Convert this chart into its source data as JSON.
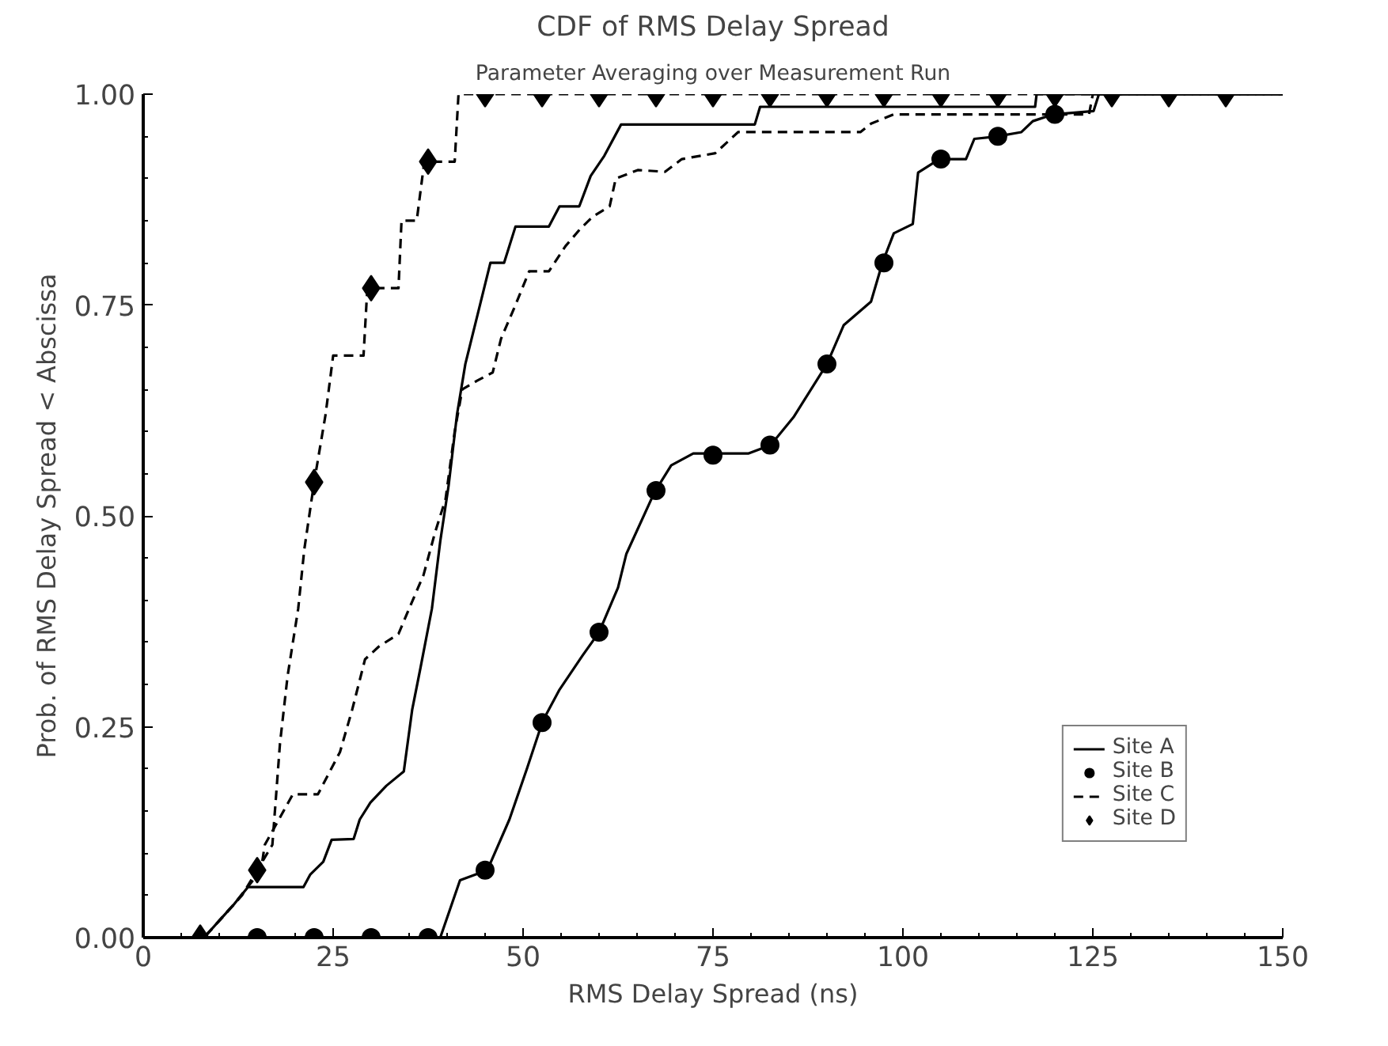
{
  "chart_data": {
    "type": "line",
    "title": "CDF of RMS Delay Spread",
    "subtitle": "Parameter Averaging over Measurement Run",
    "xlabel": "RMS Delay Spread (ns)",
    "ylabel": "Prob. of RMS Delay Spread < Abscissa",
    "xlim": [
      0,
      150
    ],
    "ylim": [
      0,
      1
    ],
    "xticks": [
      0,
      {
        "value": 5,
        "label": null
      },
      {
        "value": 10,
        "label": null
      },
      {
        "value": 15,
        "label": null
      },
      {
        "value": 20,
        "label": null
      },
      25,
      {
        "value": 30,
        "label": null
      },
      {
        "value": 35,
        "label": null
      },
      {
        "value": 40,
        "label": null
      },
      {
        "value": 45,
        "label": null
      },
      50,
      {
        "value": 55,
        "label": null
      },
      {
        "value": 60,
        "label": null
      },
      {
        "value": 65,
        "label": null
      },
      {
        "value": 70,
        "label": null
      },
      75,
      {
        "value": 80,
        "label": null
      },
      {
        "value": 85,
        "label": null
      },
      {
        "value": 90,
        "label": null
      },
      {
        "value": 95,
        "label": null
      },
      100,
      {
        "value": 105,
        "label": null
      },
      {
        "value": 110,
        "label": null
      },
      {
        "value": 115,
        "label": null
      },
      {
        "value": 120,
        "label": null
      },
      125,
      {
        "value": 130,
        "label": null
      },
      {
        "value": 135,
        "label": null
      },
      {
        "value": 140,
        "label": null
      },
      {
        "value": 145,
        "label": null
      },
      150
    ],
    "yticks": [
      {
        "value": 0,
        "label": "0.00"
      },
      {
        "value": 0.05,
        "label": null
      },
      {
        "value": 0.1,
        "label": null
      },
      {
        "value": 0.15,
        "label": null
      },
      {
        "value": 0.2,
        "label": null
      },
      {
        "value": 0.25,
        "label": "0.25"
      },
      {
        "value": 0.3,
        "label": null
      },
      {
        "value": 0.35,
        "label": null
      },
      {
        "value": 0.4,
        "label": null
      },
      {
        "value": 0.45,
        "label": null
      },
      {
        "value": 0.5,
        "label": "0.50"
      },
      {
        "value": 0.55,
        "label": null
      },
      {
        "value": 0.6,
        "label": null
      },
      {
        "value": 0.65,
        "label": null
      },
      {
        "value": 0.7,
        "label": null
      },
      {
        "value": 0.75,
        "label": "0.75"
      },
      {
        "value": 0.8,
        "label": null
      },
      {
        "value": 0.85,
        "label": null
      },
      {
        "value": 0.9,
        "label": null
      },
      {
        "value": 0.95,
        "label": null
      },
      {
        "value": 1,
        "label": "1.00"
      }
    ],
    "grid": false,
    "legend": "bottom right",
    "series": [
      {
        "name": "Site A",
        "color": "#000000",
        "line_style": "solid",
        "marker": "none",
        "x": [
          0,
          8,
          10,
          12,
          13.8,
          21.1,
          22,
          23.7,
          24.8,
          27.7,
          28.5,
          29.9,
          32,
          34.3,
          35.4,
          36.5,
          38,
          39.1,
          40.2,
          41.3,
          42.4,
          44.6,
          45.7,
          47.5,
          49,
          53.4,
          54.8,
          57.4,
          58.9,
          60.7,
          62.9,
          80.5,
          81.2,
          117.4,
          117.6,
          150
        ],
        "values": [
          0,
          0,
          0.02,
          0.04,
          0.06,
          0.06,
          0.075,
          0.09,
          0.116,
          0.117,
          0.14,
          0.16,
          0.18,
          0.197,
          0.27,
          0.32,
          0.39,
          0.47,
          0.536,
          0.62,
          0.68,
          0.76,
          0.8,
          0.8,
          0.843,
          0.843,
          0.867,
          0.867,
          0.903,
          0.927,
          0.964,
          0.964,
          0.985,
          0.985,
          1,
          1
        ]
      },
      {
        "color": "#000000",
        "line_style": "solid",
        "marker": "none",
        "x": [
          0,
          39.1,
          41.7,
          45.3,
          48.2,
          50.5,
          52.6,
          54.8,
          57.8,
          60,
          62.5,
          63.6,
          67.3,
          69.5,
          72.4,
          79.7,
          82.6,
          85.6,
          90,
          92.2,
          95.8,
          97.3,
          98.8,
          101.3,
          102,
          104.8,
          108.3,
          109.4,
          112.5,
          115.6,
          117.1,
          119.8,
          125.1,
          125.8,
          150
        ],
        "values": [
          0,
          0,
          0.068,
          0.08,
          0.14,
          0.2,
          0.257,
          0.294,
          0.334,
          0.362,
          0.415,
          0.455,
          0.528,
          0.56,
          0.574,
          0.574,
          0.584,
          0.617,
          0.68,
          0.726,
          0.754,
          0.8,
          0.835,
          0.846,
          0.907,
          0.923,
          0.923,
          0.947,
          0.95,
          0.955,
          0.968,
          0.976,
          0.98,
          1,
          1
        ]
      },
      {
        "name": "Site B",
        "type": "scatter",
        "color": "#000000",
        "marker": "circle",
        "x": [
          15,
          22.5,
          30,
          37.5,
          45,
          52.5,
          60,
          67.5,
          75,
          82.5,
          90,
          97.5,
          105,
          112.5,
          120
        ],
        "values": [
          0,
          0,
          0,
          0,
          0.08,
          0.255,
          0.362,
          0.53,
          0.572,
          0.584,
          0.68,
          0.8,
          0.923,
          0.95,
          0.976
        ]
      },
      {
        "name": "Site C",
        "color": "#000000",
        "line_style": "dashed",
        "marker": "none",
        "x": [
          0,
          8,
          12,
          15.5,
          16,
          19.7,
          23,
          25.9,
          27.5,
          29.2,
          31,
          33.6,
          35,
          36.9,
          38.4,
          39.8,
          41,
          42,
          43.9,
          46,
          47.1,
          49,
          50.8,
          53.4,
          55.6,
          57.5,
          59.2,
          61.4,
          62.2,
          65.1,
          68.7,
          70.9,
          75.3,
          78.3,
          94.4,
          95.8,
          98.8,
          101,
          124.5,
          125,
          150
        ],
        "values": [
          0,
          0,
          0.04,
          0.08,
          0.11,
          0.17,
          0.17,
          0.22,
          0.27,
          0.33,
          0.345,
          0.36,
          0.39,
          0.43,
          0.48,
          0.52,
          0.6,
          0.65,
          0.66,
          0.67,
          0.71,
          0.75,
          0.79,
          0.79,
          0.82,
          0.84,
          0.855,
          0.867,
          0.9,
          0.91,
          0.908,
          0.923,
          0.93,
          0.955,
          0.955,
          0.965,
          0.976,
          0.976,
          0.976,
          1,
          1
        ]
      },
      {
        "color": "#000000",
        "line_style": "dashed",
        "marker": "none",
        "x": [
          0,
          8,
          10,
          13,
          15,
          17,
          18,
          19,
          20.4,
          21.2,
          22.5,
          24,
          25,
          29,
          29.5,
          33.6,
          34,
          36,
          37,
          41,
          41.5,
          150
        ],
        "values": [
          0,
          0,
          0.02,
          0.05,
          0.08,
          0.11,
          0.23,
          0.31,
          0.39,
          0.46,
          0.54,
          0.62,
          0.69,
          0.69,
          0.77,
          0.77,
          0.85,
          0.85,
          0.92,
          0.92,
          1,
          1
        ]
      },
      {
        "name": "Site D",
        "type": "scatter",
        "color": "#000000",
        "marker": "diamond",
        "x": [
          7.5,
          15,
          22.5,
          30,
          37.5,
          45,
          52.5,
          60,
          67.5,
          75,
          82.5,
          90,
          97.5,
          105,
          112.5,
          120,
          127.5,
          135,
          142.5
        ],
        "values": [
          0,
          0.08,
          0.54,
          0.77,
          0.92,
          1,
          1,
          1,
          1,
          1,
          1,
          1,
          1,
          1,
          1,
          1,
          1,
          1,
          1
        ]
      }
    ]
  }
}
